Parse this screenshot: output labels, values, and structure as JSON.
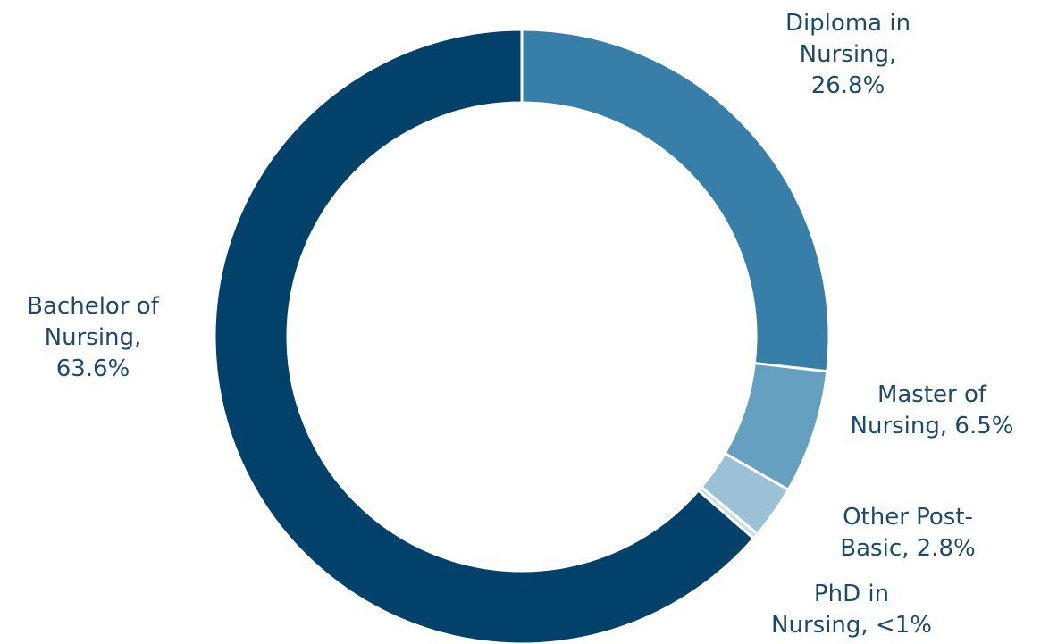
{
  "chart_data": {
    "type": "pie",
    "variant": "donut",
    "title": "",
    "legend": "none",
    "slices": [
      {
        "label_lines": [
          "Diploma in",
          "Nursing,",
          "26.8%"
        ],
        "category": "Diploma in Nursing",
        "value": 26.8,
        "display": "26.8%",
        "color": "#377ea8"
      },
      {
        "label_lines": [
          "Master of",
          "Nursing, 6.5%"
        ],
        "category": "Master of Nursing",
        "value": 6.5,
        "display": "6.5%",
        "color": "#66a0c0"
      },
      {
        "label_lines": [
          "Other Post-",
          "Basic, 2.8%"
        ],
        "category": "Other Post-Basic",
        "value": 2.8,
        "display": "2.8%",
        "color": "#9cc0d6"
      },
      {
        "label_lines": [
          "PhD in",
          "Nursing, <1%"
        ],
        "category": "PhD in Nursing",
        "value": 0.3,
        "display": "<1%",
        "color": "#c9dce8"
      },
      {
        "label_lines": [
          "Bachelor of",
          "Nursing,",
          "63.6%"
        ],
        "category": "Bachelor of Nursing",
        "value": 63.6,
        "display": "63.6%",
        "color": "#02426a"
      }
    ]
  }
}
